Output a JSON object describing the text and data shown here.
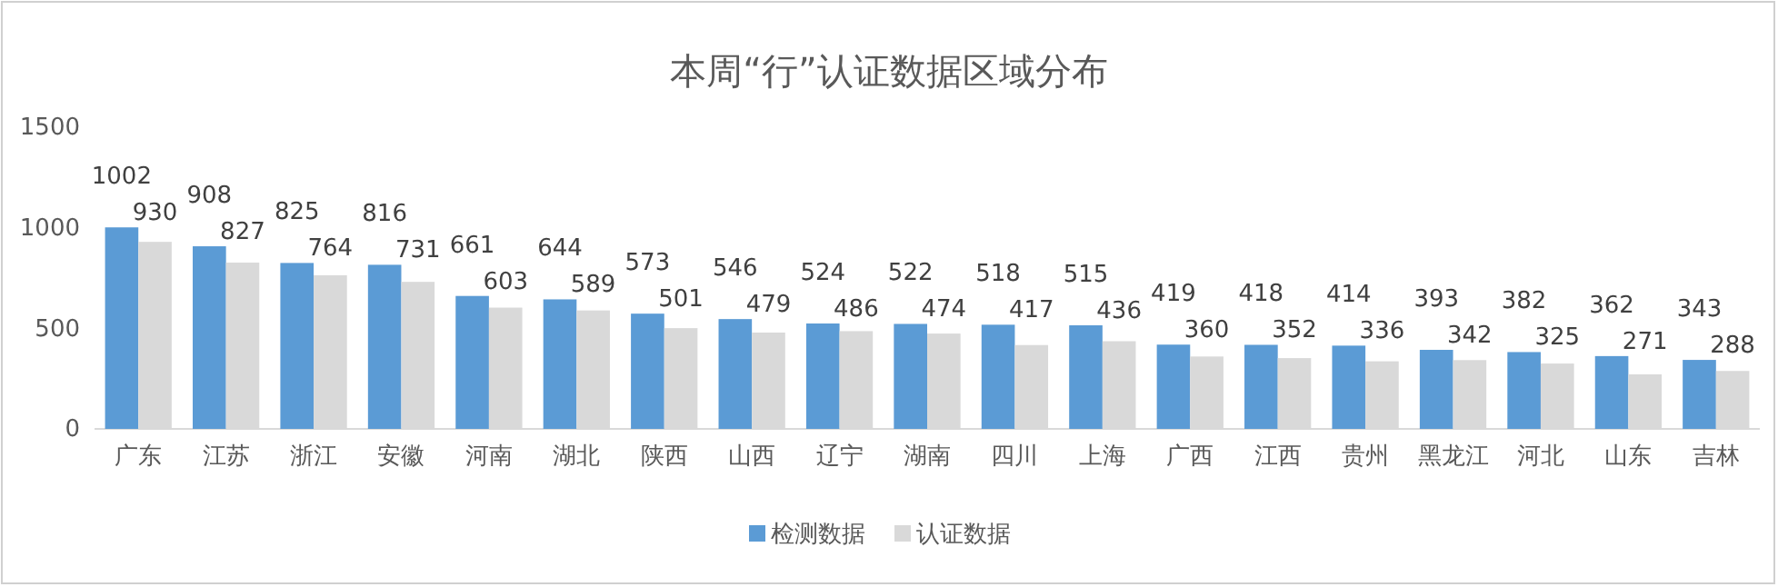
{
  "chart_data": {
    "type": "bar",
    "title": "本周“行”认证数据区域分布",
    "categories": [
      "广东",
      "江苏",
      "浙江",
      "安徽",
      "河南",
      "湖北",
      "陕西",
      "山西",
      "辽宁",
      "湖南",
      "四川",
      "上海",
      "广西",
      "江西",
      "贵州",
      "黑龙江",
      "河北",
      "山东",
      "吉林"
    ],
    "series": [
      {
        "name": "检测数据",
        "color": "#5b9bd5",
        "values": [
          1002,
          908,
          825,
          816,
          661,
          644,
          573,
          546,
          524,
          522,
          518,
          515,
          419,
          418,
          414,
          393,
          382,
          362,
          343
        ]
      },
      {
        "name": "认证数据",
        "color": "#d9d9d9",
        "values": [
          930,
          827,
          764,
          731,
          603,
          589,
          501,
          479,
          486,
          474,
          417,
          436,
          360,
          352,
          336,
          342,
          325,
          271,
          288
        ]
      }
    ],
    "ylim": [
      0,
      1500
    ],
    "yticks": [
      0,
      500,
      1000,
      1500
    ],
    "grid": false,
    "legend": "bottom",
    "data_labels": true
  }
}
